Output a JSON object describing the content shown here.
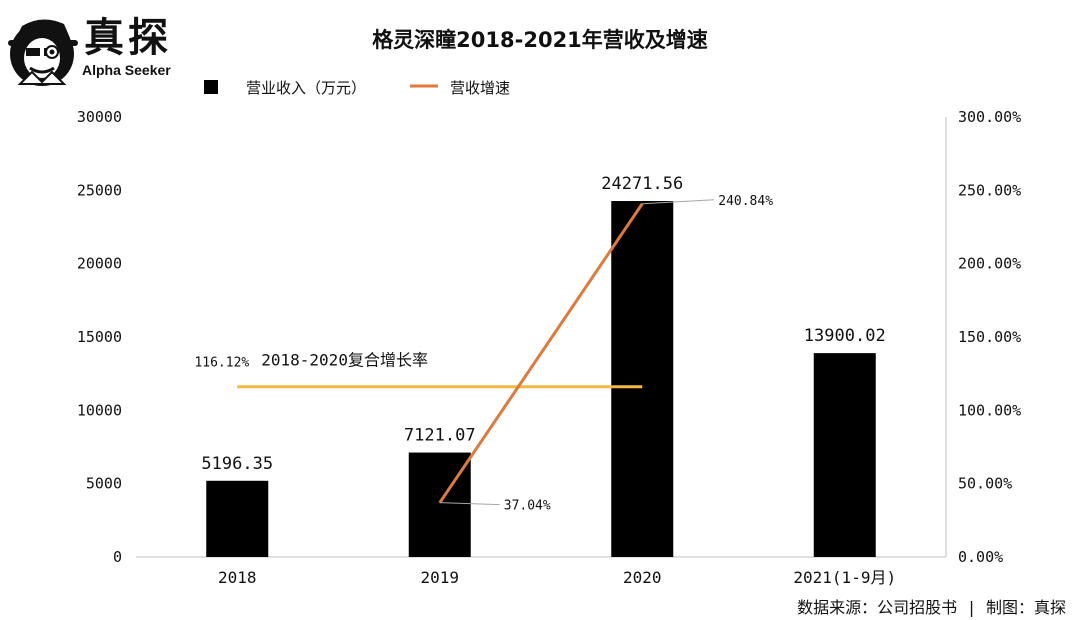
{
  "brand": {
    "name": "真探",
    "tagline": "Alpha Seeker"
  },
  "source_text": "数据来源：公司招股书 | 制图：真探",
  "colors": {
    "bar": "#000000",
    "growth_line": "#e07a3a",
    "cagr_line": "#f4b942",
    "axis": "#bfbfbf",
    "leader": "#a6a6a6"
  },
  "chart_data": {
    "type": "bar",
    "title": "格灵深瞳2018-2021年营收及增速",
    "categories": [
      "2018",
      "2019",
      "2020",
      "2021(1-9月)"
    ],
    "series": [
      {
        "name": "营业收入（万元）",
        "type": "bar",
        "axis": "left",
        "values": [
          5196.35,
          7121.07,
          24271.56,
          13900.02
        ],
        "labels": [
          "5196.35",
          "7121.07",
          "24271.56",
          "13900.02"
        ]
      },
      {
        "name": "营收增速",
        "type": "line",
        "axis": "right",
        "points": [
          {
            "category": "2019",
            "value": 37.04,
            "label": "37.04%"
          },
          {
            "category": "2020",
            "value": 240.84,
            "label": "240.84%"
          }
        ]
      }
    ],
    "annotation": {
      "type": "hline",
      "axis": "right",
      "value": 116.12,
      "label": "116.12%",
      "text": "2018-2020复合增长率",
      "from_category": "2018",
      "to_category": "2020"
    },
    "y_left": {
      "min": 0,
      "max": 30000,
      "ticks": [
        "0",
        "5000",
        "10000",
        "15000",
        "20000",
        "25000",
        "30000"
      ]
    },
    "y_right": {
      "min": 0,
      "max": 300,
      "ticks": [
        "0.00%",
        "50.00%",
        "100.00%",
        "150.00%",
        "200.00%",
        "250.00%",
        "300.00%"
      ]
    },
    "legend_position": "top-left",
    "grid": false
  }
}
